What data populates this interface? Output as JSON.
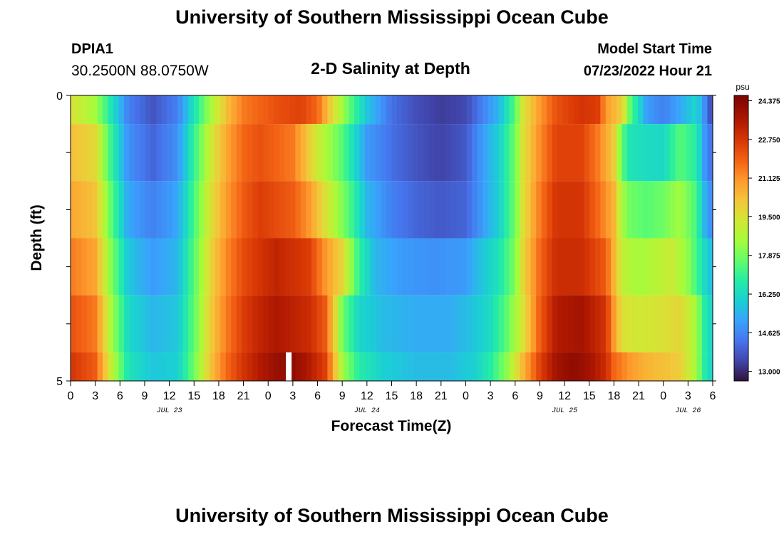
{
  "header": {
    "title": "University of Southern Mississippi Ocean Cube",
    "station": "DPIA1",
    "coords": "30.2500N  88.0750W",
    "plot_title": "2-D Salinity at Depth",
    "model_label": "Model Start Time",
    "model_time": "07/23/2022 Hour 21"
  },
  "footer": {
    "title": "University of Southern Mississippi Ocean Cube"
  },
  "chart_data": {
    "type": "heatmap",
    "title": "2-D Salinity at Depth",
    "xlabel": "Forecast Time(Z)",
    "ylabel": "Depth (ft)",
    "y_tick_labels": [
      "0",
      "5"
    ],
    "ylim": [
      0,
      5
    ],
    "x_start_hour": 0,
    "x_end_hour": 78,
    "x_tick_labels": [
      "0",
      "3",
      "6",
      "9",
      "12",
      "15",
      "18",
      "21",
      "0",
      "3",
      "6",
      "9",
      "12",
      "15",
      "18",
      "21",
      "0",
      "3",
      "6",
      "9",
      "12",
      "15",
      "18",
      "21",
      "0",
      "3",
      "6"
    ],
    "date_labels": [
      {
        "label": "JUL 23",
        "hour": 12
      },
      {
        "label": "JUL 24",
        "hour": 36
      },
      {
        "label": "JUL 25",
        "hour": 60
      },
      {
        "label": "JUL 26",
        "hour": 75
      }
    ],
    "colorbar": {
      "unit": "psu",
      "min": 12.6,
      "max": 24.6,
      "tick_values": [
        "24.375",
        "22.750",
        "21.125",
        "19.500",
        "17.875",
        "16.250",
        "14.625",
        "13.000"
      ]
    },
    "depth_layers": [
      {
        "depth_top": 0.0,
        "depth_bottom": 0.5,
        "knots": [
          [
            0,
            19.5
          ],
          [
            3,
            18.5
          ],
          [
            5,
            16.5
          ],
          [
            7,
            14.5
          ],
          [
            10,
            13.7
          ],
          [
            13,
            14.5
          ],
          [
            15,
            16.5
          ],
          [
            17,
            18.5
          ],
          [
            19,
            20.3
          ],
          [
            21,
            21.5
          ],
          [
            25,
            22.2
          ],
          [
            28,
            22.5
          ],
          [
            30,
            21.8
          ],
          [
            32,
            19.5
          ],
          [
            34,
            17.5
          ],
          [
            36,
            15.8
          ],
          [
            39,
            14.2
          ],
          [
            42,
            13.6
          ],
          [
            45,
            13.3
          ],
          [
            48,
            13.5
          ],
          [
            50,
            14.5
          ],
          [
            52,
            15.5
          ],
          [
            54,
            17.5
          ],
          [
            55,
            19.5
          ],
          [
            57,
            21.0
          ],
          [
            59,
            22.2
          ],
          [
            62,
            22.8
          ],
          [
            64,
            22.6
          ],
          [
            65,
            21.0
          ],
          [
            67,
            20.0
          ],
          [
            68,
            17.5
          ],
          [
            69,
            16.3
          ],
          [
            70,
            15.0
          ],
          [
            72,
            14.5
          ],
          [
            74,
            15.2
          ],
          [
            76,
            16.2
          ],
          [
            77,
            14.8
          ],
          [
            78,
            13.2
          ]
        ]
      },
      {
        "depth_top": 0.5,
        "depth_bottom": 1.5,
        "knots": [
          [
            0,
            20.3
          ],
          [
            3,
            19.7
          ],
          [
            5,
            17.0
          ],
          [
            7,
            14.8
          ],
          [
            10,
            14.0
          ],
          [
            13,
            14.8
          ],
          [
            15,
            17.0
          ],
          [
            17,
            19.2
          ],
          [
            19,
            20.8
          ],
          [
            21,
            21.8
          ],
          [
            23,
            22.2
          ],
          [
            27,
            21.5
          ],
          [
            30,
            19.2
          ],
          [
            33,
            17.5
          ],
          [
            36,
            15.0
          ],
          [
            39,
            14.2
          ],
          [
            42,
            13.7
          ],
          [
            45,
            13.4
          ],
          [
            48,
            13.8
          ],
          [
            50,
            15.0
          ],
          [
            52,
            16.0
          ],
          [
            54,
            17.8
          ],
          [
            55,
            19.6
          ],
          [
            57,
            21.2
          ],
          [
            59,
            22.5
          ],
          [
            62,
            22.5
          ],
          [
            64,
            21.5
          ],
          [
            66,
            20.0
          ],
          [
            67,
            17.5
          ],
          [
            68,
            16.5
          ],
          [
            70,
            16.3
          ],
          [
            72,
            16.2
          ],
          [
            74,
            17.5
          ],
          [
            76,
            16.8
          ],
          [
            77,
            15.0
          ],
          [
            78,
            14.0
          ]
        ]
      },
      {
        "depth_top": 1.5,
        "depth_bottom": 2.5,
        "knots": [
          [
            0,
            20.8
          ],
          [
            3,
            20.2
          ],
          [
            5,
            17.5
          ],
          [
            7,
            15.2
          ],
          [
            10,
            14.5
          ],
          [
            13,
            15.2
          ],
          [
            15,
            17.3
          ],
          [
            17,
            19.5
          ],
          [
            19,
            21.0
          ],
          [
            21,
            22.0
          ],
          [
            23,
            22.6
          ],
          [
            27,
            22.0
          ],
          [
            29,
            21.0
          ],
          [
            31,
            19.5
          ],
          [
            34,
            17.3
          ],
          [
            36,
            15.5
          ],
          [
            39,
            14.5
          ],
          [
            42,
            14.0
          ],
          [
            45,
            13.8
          ],
          [
            48,
            14.0
          ],
          [
            50,
            15.0
          ],
          [
            52,
            16.0
          ],
          [
            54,
            17.8
          ],
          [
            55,
            19.6
          ],
          [
            57,
            21.5
          ],
          [
            59,
            22.8
          ],
          [
            62,
            22.8
          ],
          [
            64,
            21.8
          ],
          [
            66,
            20.5
          ],
          [
            67,
            18.5
          ],
          [
            68,
            17.8
          ],
          [
            70,
            17.5
          ],
          [
            72,
            17.8
          ],
          [
            74,
            18.5
          ],
          [
            76,
            17.3
          ],
          [
            77,
            15.5
          ],
          [
            78,
            14.5
          ]
        ]
      },
      {
        "depth_top": 2.5,
        "depth_bottom": 3.5,
        "knots": [
          [
            0,
            21.5
          ],
          [
            3,
            20.8
          ],
          [
            5,
            18.0
          ],
          [
            7,
            15.8
          ],
          [
            10,
            15.0
          ],
          [
            13,
            15.5
          ],
          [
            15,
            17.5
          ],
          [
            17,
            19.8
          ],
          [
            19,
            21.3
          ],
          [
            21,
            22.3
          ],
          [
            23,
            22.8
          ],
          [
            25,
            23.2
          ],
          [
            29,
            22.6
          ],
          [
            31,
            21.0
          ],
          [
            33,
            19.8
          ],
          [
            35,
            17.0
          ],
          [
            37,
            15.5
          ],
          [
            40,
            15.0
          ],
          [
            44,
            14.8
          ],
          [
            48,
            15.0
          ],
          [
            50,
            15.8
          ],
          [
            52,
            16.5
          ],
          [
            54,
            18.0
          ],
          [
            55,
            19.8
          ],
          [
            57,
            21.8
          ],
          [
            59,
            23.0
          ],
          [
            62,
            23.0
          ],
          [
            65,
            22.0
          ],
          [
            66,
            20.5
          ],
          [
            67,
            19.0
          ],
          [
            69,
            18.5
          ],
          [
            71,
            18.8
          ],
          [
            73,
            19.2
          ],
          [
            75,
            18.2
          ],
          [
            77,
            16.3
          ],
          [
            78,
            15.5
          ]
        ]
      },
      {
        "depth_top": 3.5,
        "depth_bottom": 4.5,
        "knots": [
          [
            0,
            22.2
          ],
          [
            3,
            21.5
          ],
          [
            5,
            18.5
          ],
          [
            7,
            16.2
          ],
          [
            10,
            15.5
          ],
          [
            13,
            15.8
          ],
          [
            15,
            17.6
          ],
          [
            17,
            20.0
          ],
          [
            19,
            21.5
          ],
          [
            21,
            22.6
          ],
          [
            23,
            23.2
          ],
          [
            25,
            23.6
          ],
          [
            29,
            23.0
          ],
          [
            31,
            22.0
          ],
          [
            32,
            20.0
          ],
          [
            33,
            17.8
          ],
          [
            35,
            16.2
          ],
          [
            38,
            15.6
          ],
          [
            42,
            15.3
          ],
          [
            46,
            15.3
          ],
          [
            49,
            15.8
          ],
          [
            51,
            16.3
          ],
          [
            53,
            17.6
          ],
          [
            55,
            19.5
          ],
          [
            57,
            22.0
          ],
          [
            59,
            23.5
          ],
          [
            62,
            23.8
          ],
          [
            65,
            22.8
          ],
          [
            66,
            21.0
          ],
          [
            67,
            19.5
          ],
          [
            69,
            19.3
          ],
          [
            72,
            19.5
          ],
          [
            74,
            19.8
          ],
          [
            76,
            18.5
          ],
          [
            77,
            16.8
          ],
          [
            78,
            16.0
          ]
        ]
      },
      {
        "depth_top": 4.5,
        "depth_bottom": 5.0,
        "knots": [
          [
            0,
            22.8
          ],
          [
            3,
            22.0
          ],
          [
            5,
            19.0
          ],
          [
            7,
            16.5
          ],
          [
            10,
            15.8
          ],
          [
            13,
            16.0
          ],
          [
            15,
            17.8
          ],
          [
            17,
            20.2
          ],
          [
            19,
            21.8
          ],
          [
            21,
            22.8
          ],
          [
            23,
            23.5
          ],
          [
            25,
            24.0
          ],
          [
            27,
            24.2
          ],
          [
            29,
            23.5
          ],
          [
            31,
            22.5
          ],
          [
            32,
            20.5
          ],
          [
            33,
            18.5
          ],
          [
            35,
            16.8
          ],
          [
            38,
            16.0
          ],
          [
            42,
            15.6
          ],
          [
            46,
            15.6
          ],
          [
            49,
            16.0
          ],
          [
            51,
            16.8
          ],
          [
            53,
            18.2
          ],
          [
            55,
            20.5
          ],
          [
            57,
            22.5
          ],
          [
            59,
            23.8
          ],
          [
            61,
            24.2
          ],
          [
            63,
            23.8
          ],
          [
            65,
            23.0
          ],
          [
            66,
            21.8
          ],
          [
            68,
            21.0
          ],
          [
            70,
            20.5
          ],
          [
            72,
            20.3
          ],
          [
            74,
            20.0
          ],
          [
            76,
            18.5
          ],
          [
            77,
            16.8
          ],
          [
            78,
            16.0
          ]
        ]
      }
    ],
    "gap_marker": {
      "hour": 26.5,
      "depth_top": 4.5,
      "depth_bottom": 5.0
    }
  }
}
